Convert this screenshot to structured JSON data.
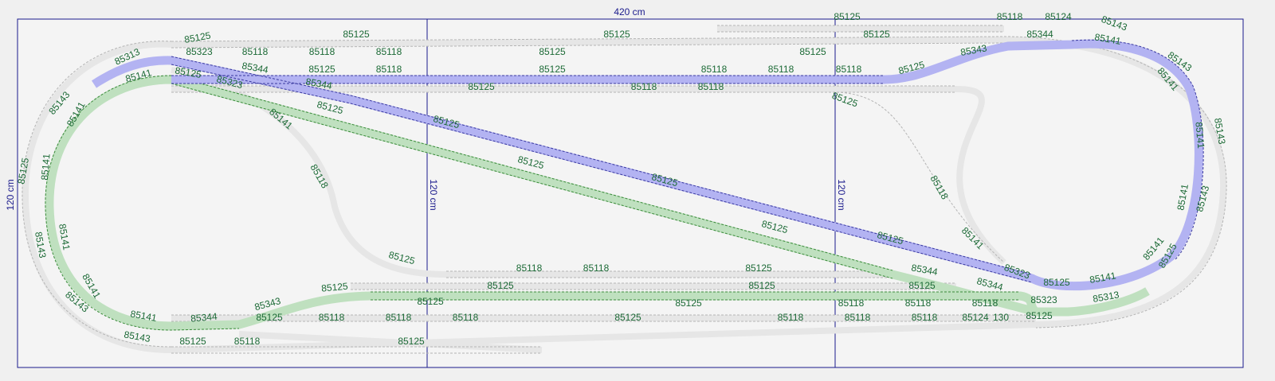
{
  "dimensions": {
    "width": "420 cm",
    "height": "120 cm",
    "divider_left": "120 cm",
    "divider_right": "120 cm"
  },
  "track_labels": [
    "85125",
    "85118",
    "85124",
    "85143",
    "85125",
    "85125",
    "85125",
    "85125",
    "85344",
    "85141",
    "85313",
    "85323",
    "85118",
    "85118",
    "85118",
    "85125",
    "85125",
    "85343",
    "85143",
    "85141",
    "85125",
    "85344",
    "85125",
    "85118",
    "85125",
    "85118",
    "85118",
    "85118",
    "85125",
    "85141",
    "85323",
    "85344",
    "85125",
    "85118",
    "85118",
    "85143",
    "85125",
    "85125",
    "85141",
    "85141",
    "85125",
    "85143",
    "85141",
    "85118",
    "85125",
    "85125",
    "85118",
    "85125",
    "85141",
    "85141",
    "85143",
    "85125",
    "85125",
    "85141",
    "85143",
    "85141",
    "85125",
    "85141",
    "85125",
    "85323",
    "85118",
    "85118",
    "85125",
    "85344",
    "85141",
    "85344",
    "85125",
    "85141",
    "85125",
    "85125",
    "85125",
    "85125",
    "85343",
    "85125",
    "85125",
    "85118",
    "85118",
    "85118",
    "85323",
    "85313",
    "85143",
    "85141",
    "85344",
    "85125",
    "85118",
    "85118",
    "85118",
    "85125",
    "85118",
    "85118",
    "85118",
    "85124",
    "130",
    "85125",
    "85143",
    "85125",
    "85118",
    "85125"
  ]
}
